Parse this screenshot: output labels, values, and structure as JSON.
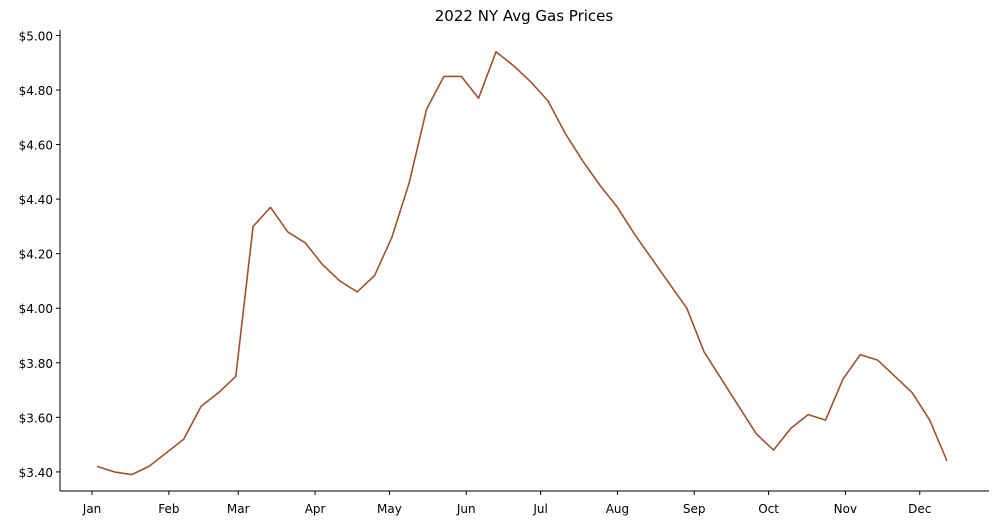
{
  "chart_data": {
    "type": "line",
    "title": "2022 NY Avg Gas Prices",
    "xlabel": "",
    "ylabel": "",
    "grid": false,
    "x_tick_labels": [
      "Jan",
      "Feb",
      "Mar",
      "Apr",
      "May",
      "Jun",
      "Jul",
      "Aug",
      "Sep",
      "Oct",
      "Nov",
      "Dec"
    ],
    "y_ticks": [
      3.4,
      3.6,
      3.8,
      4.0,
      4.2,
      4.4,
      4.6,
      4.8,
      5.0
    ],
    "y_tick_labels": [
      "$3.40",
      "$3.60",
      "$3.80",
      "$4.00",
      "$4.20",
      "$4.40",
      "$4.60",
      "$4.80",
      "$5.00"
    ],
    "ylim": [
      3.33,
      5.02
    ],
    "color": "#A0522D",
    "x": [
      "2022-01-03",
      "2022-01-10",
      "2022-01-17",
      "2022-01-24",
      "2022-01-31",
      "2022-02-07",
      "2022-02-14",
      "2022-02-21",
      "2022-02-28",
      "2022-03-07",
      "2022-03-14",
      "2022-03-21",
      "2022-03-28",
      "2022-04-04",
      "2022-04-11",
      "2022-04-18",
      "2022-04-25",
      "2022-05-02",
      "2022-05-09",
      "2022-05-16",
      "2022-05-23",
      "2022-05-30",
      "2022-06-06",
      "2022-06-13",
      "2022-06-20",
      "2022-06-27",
      "2022-07-04",
      "2022-07-11",
      "2022-07-18",
      "2022-07-25",
      "2022-08-01",
      "2022-08-08",
      "2022-08-15",
      "2022-08-22",
      "2022-08-29",
      "2022-09-05",
      "2022-09-12",
      "2022-09-19",
      "2022-09-26",
      "2022-10-03",
      "2022-10-10",
      "2022-10-17",
      "2022-10-24",
      "2022-10-31",
      "2022-11-07",
      "2022-11-14",
      "2022-11-21",
      "2022-11-28",
      "2022-12-05",
      "2022-12-12"
    ],
    "values": [
      3.42,
      3.4,
      3.39,
      3.42,
      3.47,
      3.52,
      3.64,
      3.69,
      3.75,
      4.3,
      4.37,
      4.28,
      4.24,
      4.16,
      4.1,
      4.06,
      4.12,
      4.26,
      4.46,
      4.73,
      4.85,
      4.85,
      4.77,
      4.94,
      4.89,
      4.83,
      4.76,
      4.64,
      4.54,
      4.45,
      4.37,
      4.27,
      4.18,
      4.09,
      4.0,
      3.84,
      3.74,
      3.64,
      3.54,
      3.48,
      3.56,
      3.61,
      3.59,
      3.74,
      3.83,
      3.81,
      3.75,
      3.69,
      3.59,
      3.44
    ]
  }
}
